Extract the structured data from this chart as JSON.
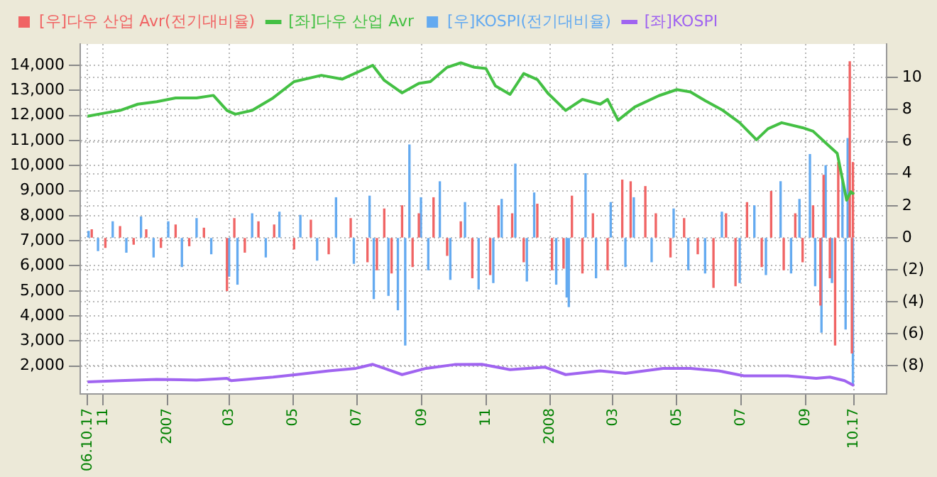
{
  "chart_data": {
    "type": "line",
    "legend": "top left",
    "grid": true,
    "xlim": [
      "2006-10-10",
      "2008-11-17"
    ],
    "xticks": [
      {
        "value": "2006-10-17",
        "label": "06.10.17"
      },
      {
        "value": "2006-11-01",
        "label": "11"
      },
      {
        "value": "2007-01-01",
        "label": "2007"
      },
      {
        "value": "2007-03-01",
        "label": "03"
      },
      {
        "value": "2007-05-01",
        "label": "05"
      },
      {
        "value": "2007-07-01",
        "label": "07"
      },
      {
        "value": "2007-09-01",
        "label": "09"
      },
      {
        "value": "2007-11-01",
        "label": "11"
      },
      {
        "value": "2008-01-01",
        "label": "2008"
      },
      {
        "value": "2008-03-01",
        "label": "03"
      },
      {
        "value": "2008-05-01",
        "label": "05"
      },
      {
        "value": "2008-07-01",
        "label": "07"
      },
      {
        "value": "2008-09-01",
        "label": "09"
      },
      {
        "value": "2008-10-17",
        "label": "10.17"
      }
    ],
    "ylim": [
      890,
      14850
    ],
    "yticks": [
      {
        "value": 2000,
        "label": "2,000"
      },
      {
        "value": 3000,
        "label": "3,000"
      },
      {
        "value": 4000,
        "label": "4,000"
      },
      {
        "value": 5000,
        "label": "5,000"
      },
      {
        "value": 6000,
        "label": "6,000"
      },
      {
        "value": 7000,
        "label": "7,000"
      },
      {
        "value": 8000,
        "label": "8,000"
      },
      {
        "value": 9000,
        "label": "9,000"
      },
      {
        "value": 10000,
        "label": "10,000"
      },
      {
        "value": 11000,
        "label": "11,000"
      },
      {
        "value": 12000,
        "label": "12,000"
      },
      {
        "value": 13000,
        "label": "13,000"
      },
      {
        "value": 14000,
        "label": "14,000"
      }
    ],
    "y2lim": [
      -9.75,
      12.1
    ],
    "y2ticks": [
      {
        "value": -8,
        "label": "(8)"
      },
      {
        "value": -6,
        "label": "(6)"
      },
      {
        "value": -4,
        "label": "(4)"
      },
      {
        "value": -2,
        "label": "(2)"
      },
      0,
      2,
      4,
      6,
      8,
      10
    ],
    "series": [
      {
        "type": "bar",
        "axis": "y2",
        "name": "[우]다우 산업 Avr(전기대비율)",
        "color": "#f06464",
        "x": [
          "2006-10-21",
          "2006-11-03",
          "2006-11-17",
          "2006-11-30",
          "2006-12-12",
          "2006-12-26",
          "2007-01-09",
          "2007-01-22",
          "2007-02-05",
          "2007-02-27",
          "2007-03-06",
          "2007-03-16",
          "2007-03-29",
          "2007-04-13",
          "2007-05-02",
          "2007-05-18",
          "2007-06-04",
          "2007-06-25",
          "2007-07-11",
          "2007-07-20",
          "2007-07-27",
          "2007-08-03",
          "2007-08-13",
          "2007-08-23",
          "2007-08-29",
          "2007-09-12",
          "2007-09-25",
          "2007-10-08",
          "2007-10-19",
          "2007-11-05",
          "2007-11-13",
          "2007-11-26",
          "2007-12-07",
          "2007-12-20",
          "2008-01-03",
          "2008-01-14",
          "2008-01-22",
          "2008-02-01",
          "2008-02-11",
          "2008-02-25",
          "2008-03-10",
          "2008-03-18",
          "2008-04-01",
          "2008-04-11",
          "2008-04-25",
          "2008-05-08",
          "2008-05-21",
          "2008-06-05",
          "2008-06-17",
          "2008-06-26",
          "2008-07-07",
          "2008-07-21",
          "2008-07-30",
          "2008-08-11",
          "2008-08-22",
          "2008-08-29",
          "2008-09-08",
          "2008-09-15",
          "2008-09-18",
          "2008-09-24",
          "2008-09-29",
          "2008-10-02",
          "2008-10-13",
          "2008-10-15",
          "2008-10-16"
        ],
        "values": [
          0.5,
          -0.6,
          0.7,
          -0.4,
          0.5,
          -0.6,
          0.8,
          -0.5,
          0.6,
          -3.3,
          1.2,
          -0.9,
          1.0,
          0.8,
          -0.7,
          1.1,
          -1.0,
          1.2,
          -1.5,
          -2.0,
          1.8,
          -2.2,
          2.0,
          -1.8,
          1.5,
          2.5,
          -1.1,
          1.0,
          -2.5,
          -2.3,
          2.0,
          1.5,
          -1.5,
          2.1,
          -2.0,
          -1.9,
          2.6,
          -2.2,
          1.5,
          -2.0,
          3.6,
          3.5,
          3.2,
          1.5,
          -1.2,
          1.2,
          -1.0,
          -3.1,
          1.5,
          -3.0,
          2.2,
          -1.8,
          2.9,
          -2.0,
          1.5,
          -1.5,
          2.0,
          -4.2,
          3.9,
          -2.5,
          -6.7,
          4.7,
          11.0,
          -7.2,
          4.7
        ]
      },
      {
        "axis": "y",
        "name": "[좌]다우 산업 Avr",
        "color": "#44c044",
        "x": [
          "2006-10-17",
          "2006-11-03",
          "2006-11-17",
          "2006-12-04",
          "2006-12-22",
          "2007-01-09",
          "2007-01-29",
          "2007-02-14",
          "2007-02-27",
          "2007-03-07",
          "2007-03-23",
          "2007-04-12",
          "2007-05-02",
          "2007-05-28",
          "2007-06-17",
          "2007-07-16",
          "2007-07-27",
          "2007-08-13",
          "2007-08-29",
          "2007-09-09",
          "2007-09-25",
          "2007-10-08",
          "2007-10-21",
          "2007-11-01",
          "2007-11-10",
          "2007-11-24",
          "2007-12-07",
          "2007-12-20",
          "2007-12-30",
          "2008-01-16",
          "2008-02-01",
          "2008-02-18",
          "2008-02-25",
          "2008-03-06",
          "2008-03-22",
          "2008-04-14",
          "2008-05-01",
          "2008-05-14",
          "2008-05-28",
          "2008-06-14",
          "2008-06-30",
          "2008-07-16",
          "2008-07-27",
          "2008-08-09",
          "2008-08-29",
          "2008-09-08",
          "2008-09-22",
          "2008-10-01",
          "2008-10-10",
          "2008-10-14",
          "2008-10-17"
        ],
        "values": [
          11970,
          12100,
          12200,
          12450,
          12550,
          12700,
          12700,
          12800,
          12200,
          12050,
          12200,
          12700,
          13350,
          13600,
          13450,
          14000,
          13400,
          12900,
          13280,
          13350,
          13920,
          14100,
          13920,
          13870,
          13180,
          12840,
          13670,
          13430,
          12890,
          12200,
          12640,
          12450,
          12640,
          11810,
          12340,
          12790,
          13030,
          12940,
          12590,
          12200,
          11710,
          11030,
          11470,
          11710,
          11510,
          11370,
          10830,
          10490,
          8620,
          8960,
          8860
        ]
      },
      {
        "type": "bar",
        "axis": "y2",
        "name": "[우]KOSPI(전기대비율)",
        "color": "#64aaf0",
        "x": [
          "2006-10-18",
          "2006-10-27",
          "2006-11-10",
          "2006-11-23",
          "2006-12-07",
          "2006-12-19",
          "2007-01-02",
          "2007-01-15",
          "2007-01-29",
          "2007-02-12",
          "2007-03-01",
          "2007-03-09",
          "2007-03-23",
          "2007-04-05",
          "2007-04-18",
          "2007-05-08",
          "2007-05-24",
          "2007-06-11",
          "2007-06-28",
          "2007-07-13",
          "2007-07-17",
          "2007-07-31",
          "2007-08-09",
          "2007-08-16",
          "2007-08-20",
          "2007-08-31",
          "2007-09-07",
          "2007-09-18",
          "2007-09-28",
          "2007-10-12",
          "2007-10-25",
          "2007-11-08",
          "2007-11-16",
          "2007-11-29",
          "2007-12-10",
          "2007-12-17",
          "2008-01-07",
          "2008-01-17",
          "2008-01-19",
          "2008-02-04",
          "2008-02-14",
          "2008-02-28",
          "2008-03-13",
          "2008-03-21",
          "2008-04-07",
          "2008-04-28",
          "2008-05-12",
          "2008-05-28",
          "2008-06-13",
          "2008-06-30",
          "2008-07-14",
          "2008-07-25",
          "2008-08-08",
          "2008-08-18",
          "2008-08-26",
          "2008-09-05",
          "2008-09-10",
          "2008-09-16",
          "2008-09-20",
          "2008-09-26",
          "2008-10-06",
          "2008-10-09",
          "2008-10-11",
          "2008-10-16"
        ],
        "values": [
          0.4,
          -0.8,
          1.0,
          -0.9,
          1.3,
          -1.2,
          1.0,
          -1.8,
          1.2,
          -1.0,
          -2.4,
          -2.9,
          1.5,
          -1.2,
          1.6,
          1.4,
          -1.4,
          2.5,
          -1.6,
          2.6,
          -3.8,
          -3.6,
          -4.5,
          -6.7,
          5.8,
          2.5,
          -2.0,
          3.5,
          -2.6,
          2.2,
          -3.2,
          -2.8,
          2.4,
          4.6,
          -2.7,
          2.8,
          -2.9,
          -3.7,
          -4.3,
          4.0,
          -2.5,
          2.2,
          -1.8,
          2.5,
          -1.5,
          1.8,
          -2.0,
          -2.2,
          1.6,
          -2.8,
          2.0,
          -2.3,
          3.5,
          -2.2,
          2.4,
          5.2,
          -3.0,
          -5.9,
          4.5,
          -2.8,
          3.5,
          -5.7,
          6.2,
          -9.2
        ]
      },
      {
        "axis": "y",
        "name": "[좌]KOSPI",
        "color": "#a064f0",
        "x": [
          "2006-10-17",
          "2006-11-17",
          "2006-12-22",
          "2007-01-29",
          "2007-02-27",
          "2007-03-03",
          "2007-04-12",
          "2007-05-04",
          "2007-06-04",
          "2007-06-30",
          "2007-07-16",
          "2007-07-27",
          "2007-08-13",
          "2007-09-05",
          "2007-10-02",
          "2007-10-28",
          "2007-11-24",
          "2007-12-27",
          "2008-01-16",
          "2008-02-18",
          "2008-03-13",
          "2008-04-18",
          "2008-05-14",
          "2008-06-10",
          "2008-07-04",
          "2008-08-15",
          "2008-09-11",
          "2008-09-24",
          "2008-10-08",
          "2008-10-17"
        ],
        "values": [
          1370,
          1420,
          1470,
          1440,
          1510,
          1420,
          1560,
          1660,
          1810,
          1910,
          2070,
          1910,
          1660,
          1910,
          2060,
          2070,
          1860,
          1960,
          1660,
          1810,
          1710,
          1910,
          1910,
          1810,
          1610,
          1610,
          1510,
          1560,
          1420,
          1220
        ]
      }
    ]
  }
}
